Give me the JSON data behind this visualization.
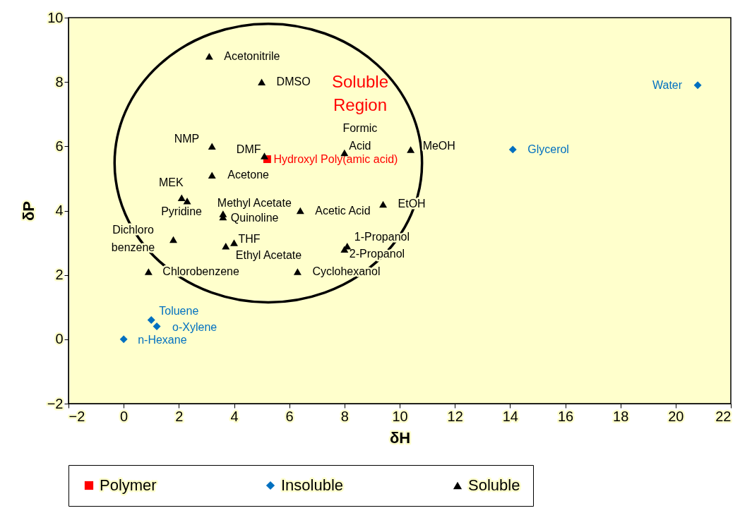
{
  "chart_data": {
    "type": "scatter",
    "xlabel": "δH",
    "ylabel": "δP",
    "xlim": [
      -2,
      22
    ],
    "ylim": [
      -2,
      10
    ],
    "xticks": [
      -2,
      0,
      2,
      4,
      6,
      8,
      10,
      12,
      14,
      16,
      18,
      20,
      22
    ],
    "yticks": [
      -2,
      0,
      2,
      4,
      6,
      8,
      10
    ],
    "grid": false,
    "legend": "bottom",
    "series": [
      {
        "name": "Polymer",
        "color": "#ff0000",
        "marker": "square",
        "x": [
          5.2
        ],
        "values": [
          5.6
        ]
      },
      {
        "name": "Insoluble",
        "color": "#0070c0",
        "marker": "diamond",
        "x": [
          1.0,
          1.2,
          0,
          14.1,
          20.8
        ],
        "values": [
          0.6,
          0.4,
          0,
          5.9,
          7.9
        ]
      },
      {
        "name": "Soluble",
        "color": "#000000",
        "marker": "triangle",
        "x": [
          3.1,
          5.0,
          3.2,
          5.1,
          3.2,
          2.1,
          2.3,
          3.6,
          3.6,
          1.8,
          4.0,
          3.7,
          0.9,
          6.3,
          6.4,
          8.0,
          10.4,
          9.4,
          8.1,
          8.0
        ],
        "values": [
          8.8,
          8.0,
          6.0,
          5.7,
          5.1,
          4.4,
          4.3,
          3.9,
          3.8,
          3.1,
          3.0,
          2.9,
          2.1,
          2.1,
          4.0,
          5.8,
          5.9,
          4.2,
          2.9,
          2.8
        ]
      }
    ],
    "annotations": [
      "Soluble Region",
      {
        "text": "Hydroxyl Poly(amic acid)",
        "x": 5.2,
        "y": 5.6
      },
      {
        "text": "Toluene",
        "x": 1.0,
        "y": 0.6
      },
      {
        "text": "o-Xylene",
        "x": 1.2,
        "y": 0.4
      },
      {
        "text": "n-Hexane",
        "x": 0,
        "y": 0
      },
      {
        "text": "Glycerol",
        "x": 14.1,
        "y": 5.9
      },
      {
        "text": "Water",
        "x": 20.8,
        "y": 7.9
      },
      {
        "text": "Acetonitrile",
        "x": 3.1,
        "y": 8.8
      },
      {
        "text": "DMSO",
        "x": 5.0,
        "y": 8.0
      },
      {
        "text": "NMP",
        "x": 3.2,
        "y": 6.0
      },
      {
        "text": "DMF",
        "x": 5.1,
        "y": 5.7
      },
      {
        "text": "Acetone",
        "x": 3.2,
        "y": 5.1
      },
      {
        "text": "MEK",
        "x": 2.1,
        "y": 4.4
      },
      {
        "text": "Pyridine",
        "x": 2.3,
        "y": 4.3
      },
      {
        "text": "Methyl Acetate",
        "x": 3.6,
        "y": 3.9
      },
      {
        "text": "Quinoline",
        "x": 3.6,
        "y": 3.8
      },
      {
        "text": "Dichloro benzene",
        "x": 1.8,
        "y": 3.1
      },
      {
        "text": "THF",
        "x": 4.0,
        "y": 3.0
      },
      {
        "text": "Ethyl Acetate",
        "x": 3.7,
        "y": 2.9
      },
      {
        "text": "Chlorobenzene",
        "x": 0.9,
        "y": 2.1
      },
      {
        "text": "Cyclohexanol",
        "x": 6.3,
        "y": 2.1
      },
      {
        "text": "Acetic Acid",
        "x": 6.4,
        "y": 4.0
      },
      {
        "text": "Formic Acid",
        "x": 8.0,
        "y": 5.8
      },
      {
        "text": "MeOH",
        "x": 10.4,
        "y": 5.9
      },
      {
        "text": "EtOH",
        "x": 9.4,
        "y": 4.2
      },
      {
        "text": "1-Propanol",
        "x": 8.1,
        "y": 2.9
      },
      {
        "text": "2-Propanol",
        "x": 8.0,
        "y": 2.8
      }
    ]
  }
}
